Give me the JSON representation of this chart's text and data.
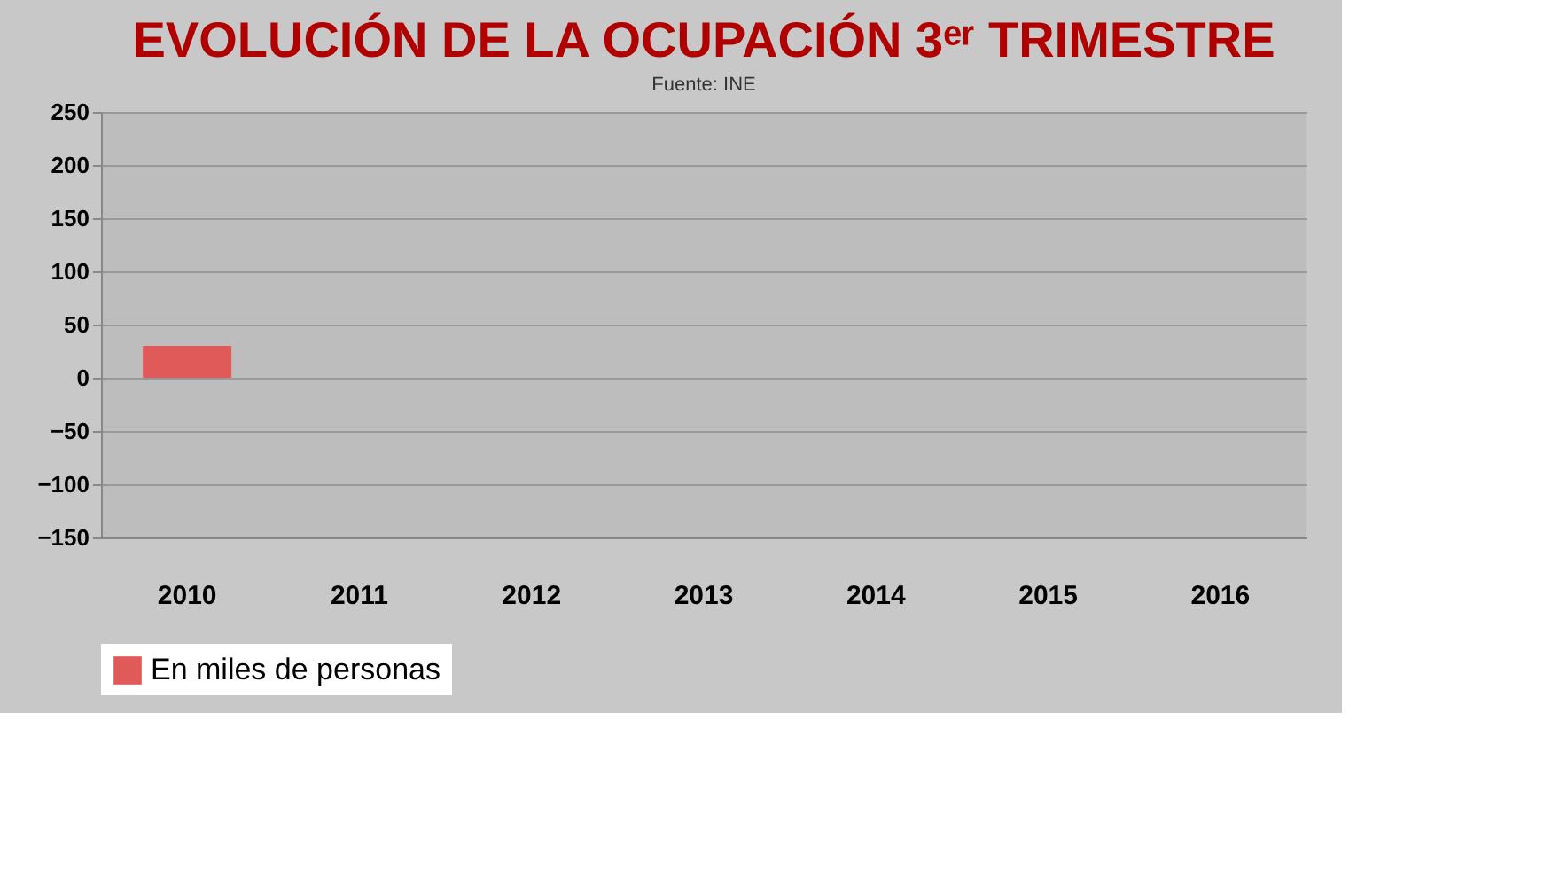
{
  "chart_data": {
    "type": "bar",
    "title": "EVOLUCIÓN DE LA OCUPACIÓN 3ᵉʳ TRIMESTRE",
    "categories": [
      "2010",
      "2011",
      "2012",
      "2013",
      "2014",
      "2015",
      "2016"
    ],
    "series": [
      {
        "name": "En miles de personas",
        "color": "#e05a5a",
        "values": [
          30,
          null,
          null,
          null,
          null,
          null,
          null
        ]
      }
    ],
    "ylim": [
      -150,
      250
    ],
    "yticks": [
      -150,
      -100,
      -50,
      0,
      50,
      100,
      150,
      200,
      250
    ],
    "grid": "y",
    "legend": "bottom left",
    "annotations": [
      "Fuente: INE"
    ]
  }
}
